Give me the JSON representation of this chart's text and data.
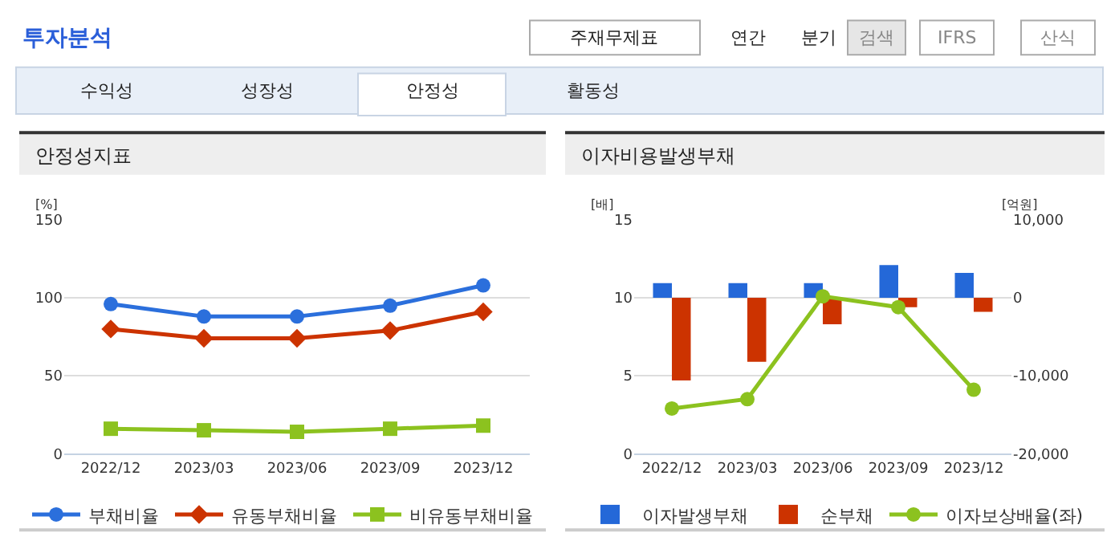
{
  "chart_data": [
    {
      "type": "other",
      "title": "투자분석",
      "annotations": [
        "주재무제표",
        "연간",
        "분기",
        "검색",
        "IFRS",
        "산식",
        "수익성",
        "성장성",
        "안정성",
        "활동성"
      ]
    },
    {
      "type": "line",
      "title": "안정성지표",
      "ylabel": "[%]",
      "categories": [
        "2022/12",
        "2023/03",
        "2023/06",
        "2023/09",
        "2023/12"
      ],
      "ylim": [
        0,
        150
      ],
      "yticks": [
        0,
        50,
        100,
        150
      ],
      "grid": "y",
      "legend": "bottom",
      "series": [
        {
          "name": "부채비율",
          "color": "#2b6fdc",
          "marker": "circle",
          "values": [
            96,
            88,
            88,
            95,
            108
          ]
        },
        {
          "name": "유동부채비율",
          "color": "#cc3300",
          "marker": "diamond",
          "values": [
            80,
            74,
            74,
            79,
            91
          ]
        },
        {
          "name": "비유동부채비율",
          "color": "#8cc21f",
          "marker": "square",
          "values": [
            16,
            15,
            14,
            16,
            18
          ]
        }
      ]
    },
    {
      "type": "bar",
      "title": "이자비용발생부채",
      "ylabel": "[배]",
      "y2label": "[억원]",
      "categories": [
        "2022/12",
        "2023/03",
        "2023/06",
        "2023/09",
        "2023/12"
      ],
      "ylim": [
        0,
        15
      ],
      "yticks": [
        0,
        5,
        10,
        15
      ],
      "y2lim": [
        -20000,
        10000
      ],
      "y2ticks": [
        {
          "value": -20000,
          "label": "-20,000"
        },
        {
          "value": -10000,
          "label": "-10,000"
        },
        0,
        {
          "value": 10000,
          "label": "10,000"
        }
      ],
      "grid": "y",
      "legend": "bottom",
      "series": [
        {
          "name": "이자발생부채",
          "color": "#2468d8",
          "axis": "y2",
          "values": [
            1900,
            1900,
            1900,
            4200,
            3200
          ]
        },
        {
          "name": "순부채",
          "color": "#cc3300",
          "axis": "y2",
          "values": [
            -10600,
            -8200,
            -3400,
            -1200,
            -1800
          ]
        },
        {
          "name": "이자보상배율(좌)",
          "type": "line",
          "color": "#8cc21f",
          "marker": "circle",
          "values": [
            2.9,
            3.5,
            10.1,
            9.4,
            4.1
          ]
        }
      ]
    }
  ]
}
